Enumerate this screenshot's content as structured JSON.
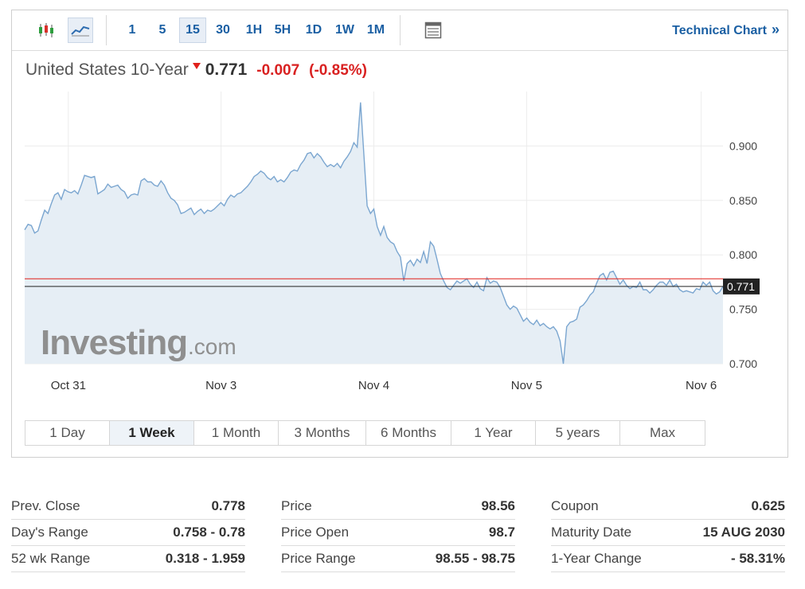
{
  "toolbar": {
    "chart_type_icons": [
      {
        "name": "candlestick-icon",
        "active": false
      },
      {
        "name": "area-chart-icon",
        "active": true
      }
    ],
    "intervals": [
      {
        "label": "1",
        "active": false
      },
      {
        "label": "5",
        "active": false
      },
      {
        "label": "15",
        "active": true
      },
      {
        "label": "30",
        "active": false
      },
      {
        "label": "1H",
        "active": false
      },
      {
        "label": "5H",
        "active": false
      },
      {
        "label": "1D",
        "active": false
      },
      {
        "label": "1W",
        "active": false
      },
      {
        "label": "1M",
        "active": false
      }
    ],
    "table_icon": "table-view-icon",
    "technical_link": "Technical Chart",
    "technical_chevron": "»"
  },
  "instrument": {
    "name": "United States 10-Year",
    "last": "0.771",
    "change": "-0.007",
    "change_pct": "(-0.85%)",
    "direction": "down"
  },
  "colors": {
    "accent": "#1a5fa3",
    "negative": "#d92121",
    "line": "#7ba6d0",
    "area": "#e6eef5",
    "prev_close_line": "#e0201b",
    "last_line": "#222222",
    "price_tag_bg": "#222222"
  },
  "chart_data": {
    "type": "area",
    "x_tick_labels": [
      "Oct 31",
      "Nov 3",
      "Nov 4",
      "Nov 5",
      "Nov 6"
    ],
    "x_tick_positions": [
      2,
      9,
      16,
      23,
      31
    ],
    "y_ticks": [
      "0.900",
      "0.850",
      "0.800",
      "0.750",
      "0.700"
    ],
    "ylim": [
      0.7,
      0.95
    ],
    "current_price_label": "0.771",
    "reference_lines": {
      "prev_close": 0.778,
      "last": 0.771
    },
    "watermark": {
      "brand": "Investing",
      "suffix": ".com"
    },
    "series": [
      {
        "values": [
          0.823,
          0.828,
          0.827,
          0.82,
          0.822,
          0.832,
          0.841,
          0.838,
          0.847,
          0.855,
          0.857,
          0.851,
          0.86,
          0.858,
          0.857,
          0.859,
          0.856,
          0.864,
          0.873,
          0.872,
          0.871,
          0.872,
          0.856,
          0.858,
          0.86,
          0.865,
          0.862,
          0.863,
          0.864,
          0.86,
          0.858,
          0.852,
          0.855,
          0.856,
          0.855,
          0.868,
          0.87,
          0.867,
          0.867,
          0.864,
          0.863,
          0.868,
          0.864,
          0.857,
          0.852,
          0.85,
          0.846,
          0.838,
          0.839,
          0.841,
          0.843,
          0.837,
          0.84,
          0.842,
          0.838,
          0.841,
          0.84,
          0.842,
          0.845,
          0.848,
          0.845,
          0.851,
          0.855,
          0.853,
          0.856,
          0.857,
          0.86,
          0.863,
          0.867,
          0.872,
          0.874,
          0.877,
          0.875,
          0.871,
          0.869,
          0.872,
          0.867,
          0.869,
          0.867,
          0.871,
          0.876,
          0.878,
          0.877,
          0.883,
          0.887,
          0.893,
          0.894,
          0.889,
          0.893,
          0.89,
          0.885,
          0.881,
          0.883,
          0.881,
          0.884,
          0.88,
          0.886,
          0.89,
          0.895,
          0.903,
          0.899,
          0.94,
          0.892,
          0.845,
          0.838,
          0.842,
          0.826,
          0.818,
          0.826,
          0.816,
          0.812,
          0.81,
          0.803,
          0.798,
          0.776,
          0.792,
          0.795,
          0.79,
          0.796,
          0.793,
          0.803,
          0.792,
          0.812,
          0.808,
          0.796,
          0.783,
          0.776,
          0.77,
          0.768,
          0.772,
          0.776,
          0.774,
          0.776,
          0.778,
          0.773,
          0.77,
          0.775,
          0.769,
          0.767,
          0.779,
          0.774,
          0.776,
          0.775,
          0.77,
          0.762,
          0.754,
          0.75,
          0.753,
          0.751,
          0.745,
          0.739,
          0.742,
          0.738,
          0.736,
          0.74,
          0.735,
          0.737,
          0.734,
          0.732,
          0.734,
          0.73,
          0.721,
          0.7,
          0.734,
          0.738,
          0.739,
          0.741,
          0.752,
          0.754,
          0.758,
          0.763,
          0.766,
          0.774,
          0.781,
          0.783,
          0.777,
          0.784,
          0.785,
          0.779,
          0.773,
          0.777,
          0.772,
          0.769,
          0.771,
          0.77,
          0.775,
          0.768,
          0.768,
          0.765,
          0.768,
          0.772,
          0.775,
          0.775,
          0.772,
          0.777,
          0.771,
          0.773,
          0.768,
          0.766,
          0.767,
          0.766,
          0.765,
          0.769,
          0.768,
          0.775,
          0.772,
          0.775,
          0.767,
          0.764,
          0.766,
          0.771
        ]
      }
    ]
  },
  "periods": [
    {
      "label": "1 Day",
      "active": false
    },
    {
      "label": "1 Week",
      "active": true
    },
    {
      "label": "1 Month",
      "active": false
    },
    {
      "label": "3 Months",
      "active": false
    },
    {
      "label": "6 Months",
      "active": false
    },
    {
      "label": "1 Year",
      "active": false
    },
    {
      "label": "5 years",
      "active": false
    },
    {
      "label": "Max",
      "active": false
    }
  ],
  "stats": [
    [
      {
        "label": "Prev. Close",
        "value": "0.778"
      },
      {
        "label": "Day's Range",
        "value": "0.758 - 0.78"
      },
      {
        "label": "52 wk Range",
        "value": "0.318 - 1.959"
      }
    ],
    [
      {
        "label": "Price",
        "value": "98.56"
      },
      {
        "label": "Price Open",
        "value": "98.7"
      },
      {
        "label": "Price Range",
        "value": "98.55 - 98.75"
      }
    ],
    [
      {
        "label": "Coupon",
        "value": "0.625"
      },
      {
        "label": "Maturity Date",
        "value": "15 AUG 2030"
      },
      {
        "label": "1-Year Change",
        "value": "- 58.31%"
      }
    ]
  ]
}
